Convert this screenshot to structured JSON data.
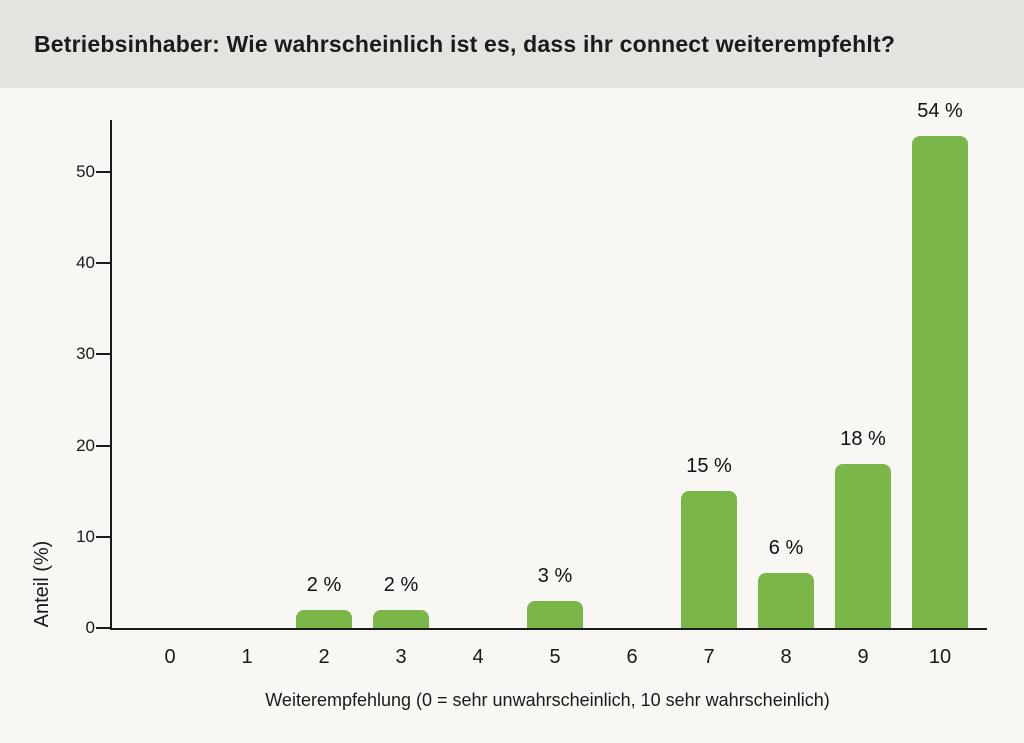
{
  "header": {
    "title": "Betriebsinhaber: Wie wahrscheinlich ist es, dass ihr connect weiterempfehlt?"
  },
  "chart_data": {
    "type": "bar",
    "title": "Betriebsinhaber: Wie wahrscheinlich ist es, dass ihr connect weiterempfehlt?",
    "categories": [
      "0",
      "1",
      "2",
      "3",
      "4",
      "5",
      "6",
      "7",
      "8",
      "9",
      "10"
    ],
    "values": [
      0,
      0,
      2,
      2,
      0,
      3,
      0,
      15,
      6,
      18,
      54
    ],
    "value_labels": [
      "",
      "",
      "2 %",
      "2 %",
      "",
      "3 %",
      "",
      "15 %",
      "6 %",
      "18 %",
      "54 %"
    ],
    "xlabel": "Weiterempfehlung (0 = sehr unwahrscheinlich, 10 sehr wahrscheinlich)",
    "ylabel": "Anteil (%)",
    "yticks": [
      0,
      10,
      20,
      30,
      40,
      50
    ],
    "ylim": [
      0,
      56
    ],
    "grid": false,
    "legend": false,
    "colors": {
      "bar": "#7ab648",
      "header_bg": "#e5e3e0",
      "page_bg": "#f9f7f4",
      "axis": "#1a1a1a",
      "title_text": "#1b1b1b"
    }
  }
}
